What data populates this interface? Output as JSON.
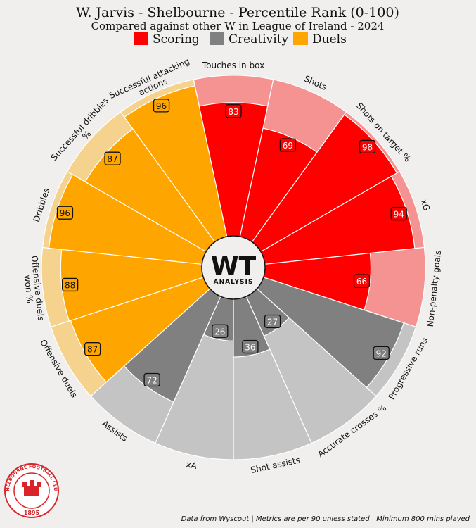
{
  "header": {
    "title": "W. Jarvis - Shelbourne - Percentile Rank (0-100)",
    "subtitle": "Compared against other W in League of Ireland - 2024"
  },
  "legend": [
    {
      "label": "Scoring",
      "color": "#ff0000"
    },
    {
      "label": "Creativity",
      "color": "#808080"
    },
    {
      "label": "Duels",
      "color": "#ffa500"
    }
  ],
  "center_logo": {
    "main": "WT",
    "sub": "ANALYSIS"
  },
  "club_badge": {
    "name": "SHELBOURNE FOOTBALL CLUB",
    "year": "1895"
  },
  "footer": {
    "note": "Data from Wyscout | Metrics are per 90 unless stated | Minimum 800 mins played"
  },
  "chart_data": {
    "type": "radial-bar",
    "range": [
      0,
      100
    ],
    "categories": [
      {
        "group": "Scoring",
        "color": "#ff0000",
        "bg": "#f59393"
      },
      {
        "group": "Creativity",
        "color": "#808080",
        "bg": "#c4c4c4"
      },
      {
        "group": "Duels",
        "color": "#ffa500",
        "bg": "#f5d38f"
      }
    ],
    "metrics": [
      {
        "label": "Touches in box",
        "value": 83,
        "group": 0
      },
      {
        "label": "Shots",
        "value": 69,
        "group": 0
      },
      {
        "label": "Shots on target %",
        "value": 98,
        "group": 0
      },
      {
        "label": "xG",
        "value": 94,
        "group": 0
      },
      {
        "label": "Non-penalty goals",
        "value": 66,
        "group": 0
      },
      {
        "label": "Progressive runs",
        "value": 92,
        "group": 1
      },
      {
        "label": "Accurate crosses %",
        "value": 27,
        "group": 1
      },
      {
        "label": "Shot assists",
        "value": 36,
        "group": 1
      },
      {
        "label": "xA",
        "value": 26,
        "group": 1
      },
      {
        "label": "Assists",
        "value": 72,
        "group": 1
      },
      {
        "label": "Offensive duels",
        "value": 87,
        "group": 2
      },
      {
        "label": "Offensive duels won %",
        "value": 88,
        "group": 2
      },
      {
        "label": "Dribbles",
        "value": 96,
        "group": 2
      },
      {
        "label": "Successful dribbles %",
        "value": 87,
        "group": 2
      },
      {
        "label": "Successful attacking actions",
        "value": 96,
        "group": 2
      }
    ]
  }
}
